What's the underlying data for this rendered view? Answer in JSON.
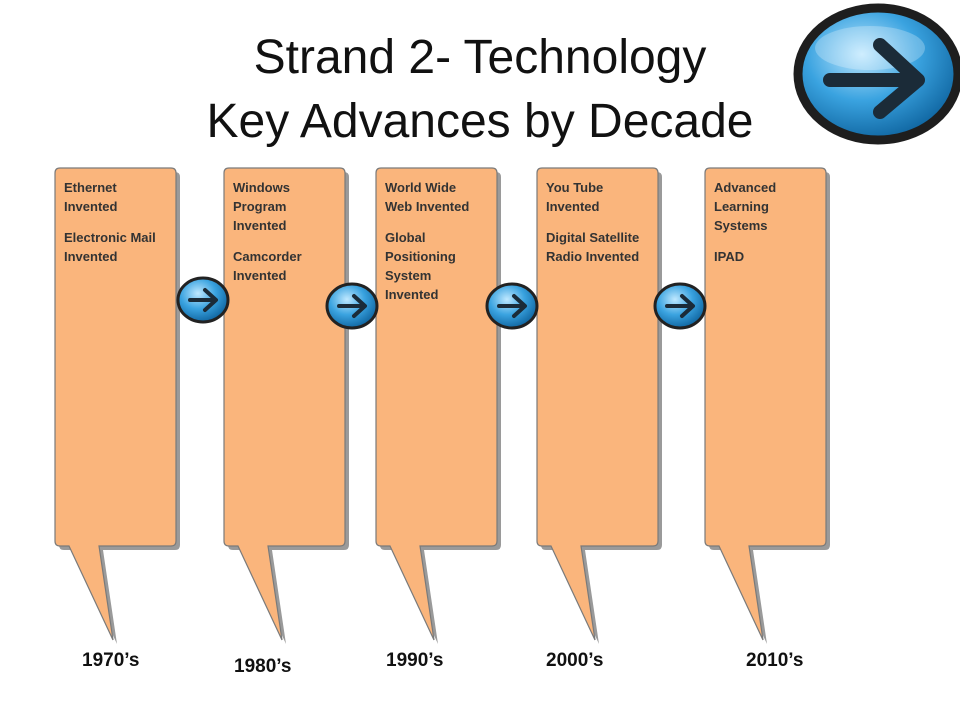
{
  "title": [
    "Strand 2- Technology",
    "Key Advances by Decade"
  ],
  "columns": [
    {
      "items": [
        "Ethernet Invented",
        "Electronic Mail Invented"
      ],
      "decade": "1970’s"
    },
    {
      "items": [
        "Windows Program Invented",
        "Camcorder Invented"
      ],
      "decade": "1980’s"
    },
    {
      "items": [
        "World Wide Web Invented",
        "Global Positioning System Invented"
      ],
      "decade": "1990’s"
    },
    {
      "items": [
        "You Tube Invented",
        "Digital Satellite Radio Invented"
      ],
      "decade": "2000’s"
    },
    {
      "items": [
        "Advanced Learning Systems",
        "IPAD"
      ],
      "decade": "2010’s"
    }
  ]
}
